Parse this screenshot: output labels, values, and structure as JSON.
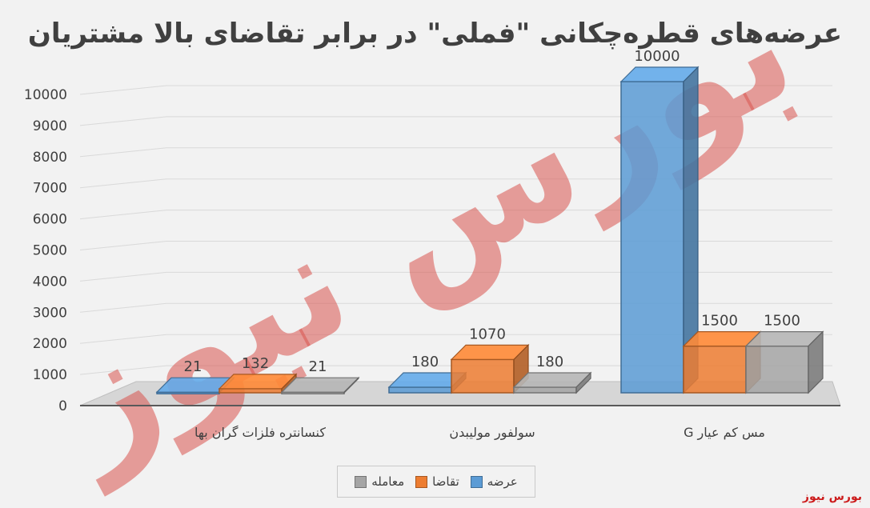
{
  "chart_data": {
    "type": "bar",
    "title": "عرضه‌های قطره‌چکانی \"فملی\" در برابر تقاضای بالا مشتریان",
    "categories": [
      "کنسانتره فلزات گران بها",
      "سولفور مولیبدن",
      "مس کم عیار G"
    ],
    "series": [
      {
        "name": "عرضه",
        "values": [
          21,
          180,
          10000
        ],
        "color": "#5b9bd5"
      },
      {
        "name": "تقاضا",
        "values": [
          132,
          1070,
          1500
        ],
        "color": "#ed7d31"
      },
      {
        "name": "معامله",
        "values": [
          21,
          180,
          1500
        ],
        "color": "#a5a5a5"
      }
    ],
    "data_labels": [
      [
        "21",
        "180",
        "10000"
      ],
      [
        "132",
        "1070",
        "1500"
      ],
      [
        "21",
        "180",
        "1500"
      ]
    ],
    "yticks": [
      "0",
      "1000",
      "2000",
      "3000",
      "4000",
      "5000",
      "6000",
      "7000",
      "8000",
      "9000",
      "10000"
    ],
    "ylim": [
      0,
      10000
    ],
    "grid": true,
    "legend_position": "bottom",
    "style": "3d-clustered-column"
  },
  "watermark": {
    "text": "بورس نیوز",
    "color": "#d9534f"
  },
  "brand": {
    "text": "بورس نیوز",
    "color": "#cc1b1b"
  }
}
